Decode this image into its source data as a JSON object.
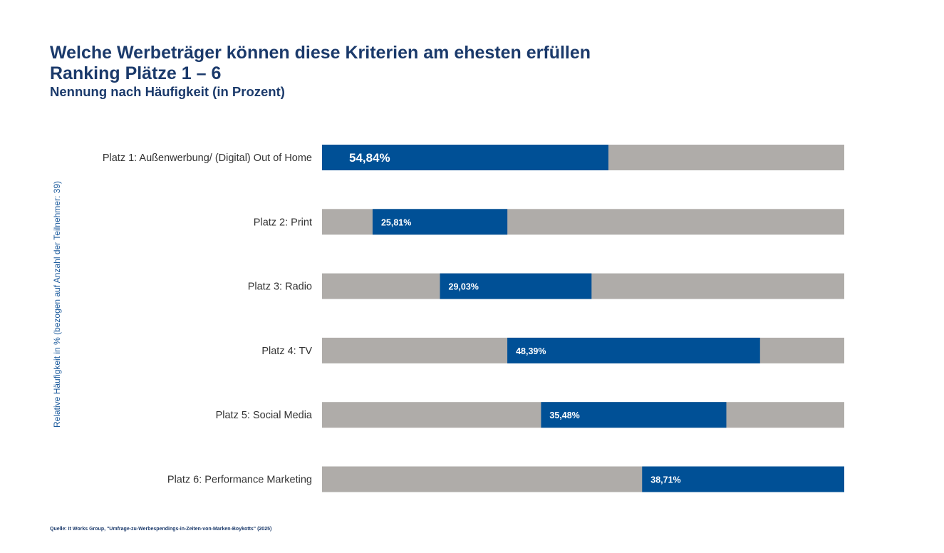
{
  "header": {
    "title": "Welche Werbeträger können diese Kriterien am ehesten erfüllen",
    "subtitle": "Ranking Plätze 1 – 6",
    "subtitle2": "Nennung nach Häufigkeit (in Prozent)"
  },
  "source": "Quelle: It Works Group, \"Umfrage-zu-Werbespendings-in-Zeiten-von-Marken-Boykotts\" (2025)",
  "colors": {
    "bar": "#005096",
    "track": "#afaca9",
    "title": "#1b3a6b"
  },
  "chart_data": {
    "type": "bar",
    "orientation": "horizontal",
    "ylabel": "Relative Häufigkeit in % (bezogen auf Anzahl der Teilnehmer: 39)",
    "categories": [
      "Platz 1: Außenwerbung/ (Digital) Out of Home",
      "Platz 2: Print",
      "Platz 3: Radio",
      "Platz 4: TV",
      "Platz 5: Social Media",
      "Platz 6: Performance Marketing"
    ],
    "values": [
      54.84,
      25.81,
      29.03,
      48.39,
      35.48,
      38.71
    ],
    "value_labels": [
      "54,84%",
      "25,81%",
      "29,03%",
      "48,39%",
      "35,48%",
      "38,71%"
    ],
    "offsets": [
      0,
      9.68,
      22.58,
      35.48,
      41.94,
      61.29
    ],
    "xlim": [
      0,
      100
    ],
    "grid": false,
    "legend": "none"
  }
}
